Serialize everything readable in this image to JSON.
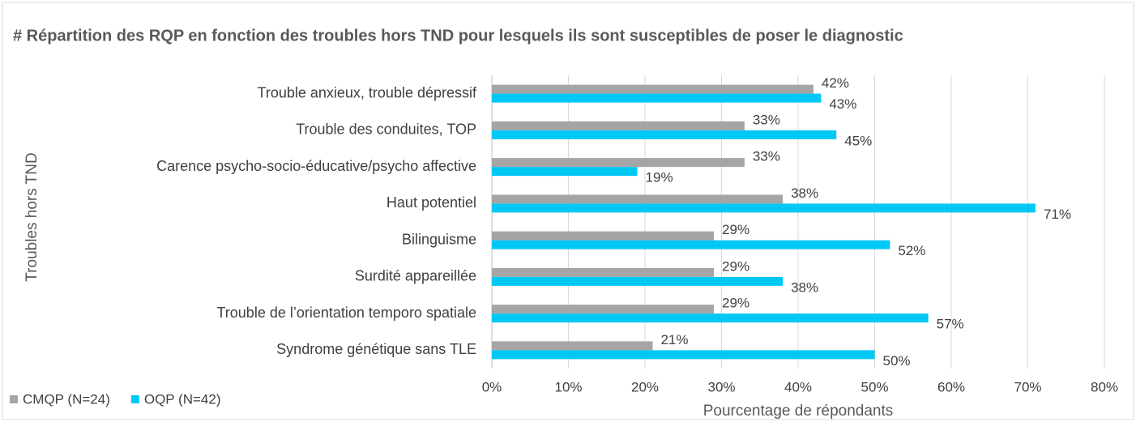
{
  "chart_data": {
    "type": "hbar",
    "title": "# Répartition des RQP en fonction des troubles hors TND pour lesquels ils sont susceptibles de poser le diagnostic",
    "ylabel": "Troubles hors TND",
    "xlabel": "Pourcentage de répondants",
    "categories": [
      "Trouble anxieux, trouble dépressif",
      "Trouble des conduites, TOP",
      "Carence psycho-socio-éducative/psycho affective",
      "Haut potentiel",
      "Bilinguisme",
      "Surdité appareillée",
      "Trouble de l’orientation temporo spatiale",
      "Syndrome génétique sans TLE"
    ],
    "series": [
      {
        "name": "CMQP (N=24)",
        "color": "#a5a5a5",
        "values": [
          42,
          33,
          33,
          38,
          29,
          29,
          29,
          21
        ],
        "value_labels": [
          "42%",
          "33%",
          "33%",
          "38%",
          "29%",
          "29%",
          "29%",
          "21%"
        ]
      },
      {
        "name": "OQP (N=42)",
        "color": "#00c8f5",
        "values": [
          43,
          45,
          19,
          71,
          52,
          38,
          57,
          50
        ],
        "value_labels": [
          "43%",
          "45%",
          "19%",
          "71%",
          "52%",
          "38%",
          "57%",
          "50%"
        ]
      }
    ],
    "xlim": [
      0,
      80
    ],
    "xticks": [
      {
        "value": 0,
        "label": "0%"
      },
      {
        "value": 10,
        "label": "10%"
      },
      {
        "value": 20,
        "label": "20%"
      },
      {
        "value": 30,
        "label": "30%"
      },
      {
        "value": 40,
        "label": "40%"
      },
      {
        "value": 50,
        "label": "50%"
      },
      {
        "value": 60,
        "label": "60%"
      },
      {
        "value": 70,
        "label": "70%"
      },
      {
        "value": 80,
        "label": "80%"
      }
    ],
    "grid": true,
    "legend": "bottom-left"
  }
}
